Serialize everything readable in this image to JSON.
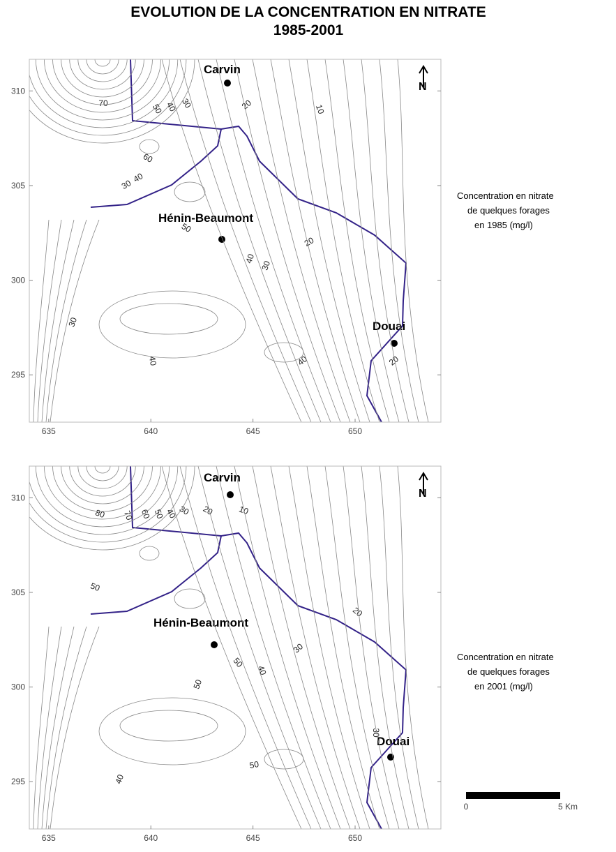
{
  "title": [
    "EVOLUTION DE LA CONCENTRATION EN NITRATE",
    "1985-2001"
  ],
  "maps": [
    {
      "xlim": [
        634.05,
        654.2
      ],
      "ylim": [
        292.5,
        311.67
      ],
      "xticks": [
        635,
        640,
        645,
        650
      ],
      "yticks": [
        310,
        305,
        300,
        295
      ],
      "places": [
        "Carvin",
        "Hénin-Beaumont",
        "Douai"
      ],
      "contour_labels": [
        70,
        50,
        40,
        30,
        20,
        10,
        60,
        40,
        30,
        50,
        40,
        30,
        20,
        30,
        40,
        40,
        20
      ],
      "caption": [
        "Concentration en nitrate",
        "de quelques forages",
        "en 1985 (mg/l)"
      ],
      "north": "N"
    },
    {
      "xlim": [
        634.05,
        654.2
      ],
      "ylim": [
        292.5,
        311.67
      ],
      "xticks": [
        635,
        640,
        645,
        650
      ],
      "yticks": [
        310,
        305,
        300,
        295
      ],
      "places": [
        "Carvin",
        "Hénin-Beaumont",
        "Douai"
      ],
      "contour_labels": [
        80,
        70,
        60,
        50,
        40,
        30,
        20,
        10,
        50,
        20,
        30,
        50,
        40,
        50,
        50,
        40,
        30
      ],
      "caption": [
        "Concentration en nitrate",
        "de quelques forages",
        "en 2001 (mg/l)"
      ],
      "north": "N"
    }
  ],
  "scale_bar": {
    "start": "0",
    "end": "5 Km"
  }
}
